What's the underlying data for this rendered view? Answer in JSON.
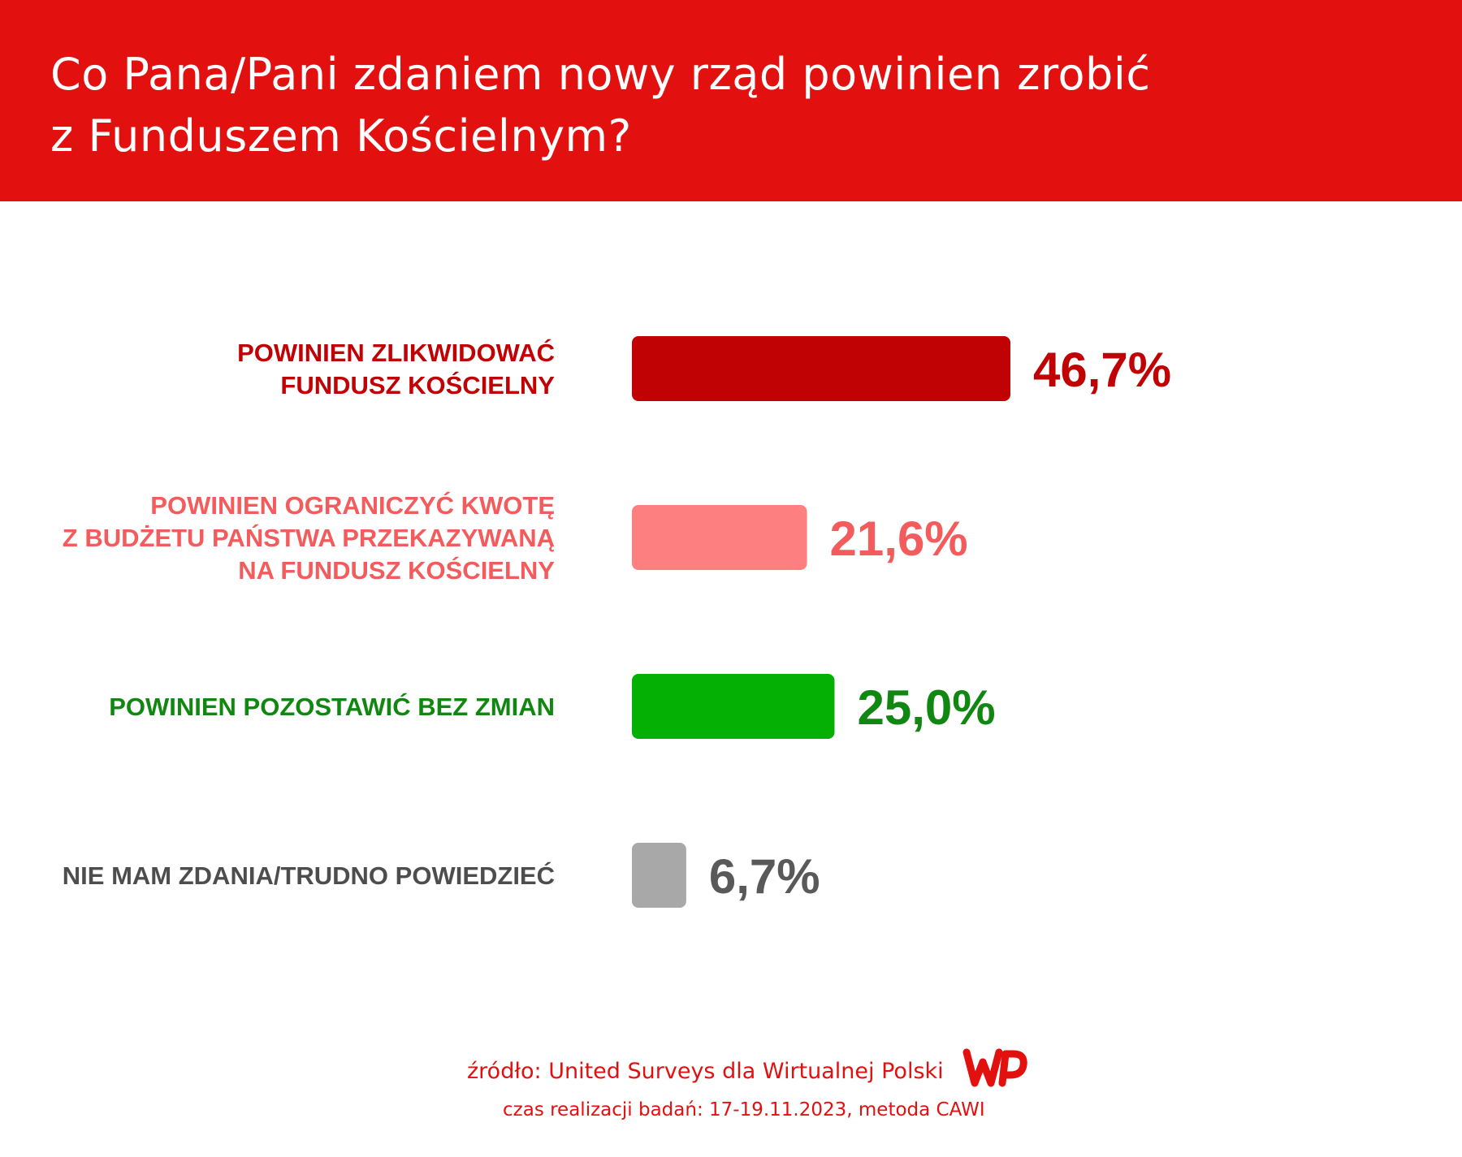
{
  "title_lines": [
    "Co Pana/Pani zdaniem nowy rząd powinien zrobić",
    "z Funduszem Kościelnym?"
  ],
  "chart_data": {
    "type": "bar",
    "orientation": "horizontal",
    "title": "Co Pana/Pani zdaniem nowy rząd powinien zrobić z Funduszem Kościelnym?",
    "categories": [
      [
        "POWINIEN ZLIKWIDOWAĆ",
        "FUNDUSZ KOŚCIELNY"
      ],
      [
        "POWINIEN OGRANICZYĆ KWOTĘ",
        "Z BUDŻETU PAŃSTWA PRZEKAZYWANĄ",
        "NA FUNDUSZ KOŚCIELNY"
      ],
      [
        "POWINIEN POZOSTAWIĆ BEZ ZMIAN"
      ],
      [
        "NIE MAM ZDANIA/TRUDNO POWIEDZIEĆ"
      ]
    ],
    "values": [
      46.7,
      21.6,
      25.0,
      6.7
    ],
    "value_labels": [
      "46,7%",
      "21,6%",
      "25,0%",
      "6,7%"
    ],
    "bar_colors": [
      "#c00205",
      "#fe7f80",
      "#03b003",
      "#a8a8a8"
    ],
    "label_colors": [
      "#c00205",
      "#f35b5c",
      "#108710",
      "#4d4d4d"
    ],
    "value_colors": [
      "#c00205",
      "#f35b5c",
      "#108710",
      "#595959"
    ],
    "xlim": [
      0,
      100
    ],
    "grid": false,
    "legend": "none"
  },
  "footer": {
    "source": "źródło: United Surveys dla Wirtualnej Polski",
    "method": "czas realizacji badań: 17-19.11.2023, metoda CAWI"
  },
  "logo": {
    "name": "wp-logo",
    "color": "#e31010"
  }
}
